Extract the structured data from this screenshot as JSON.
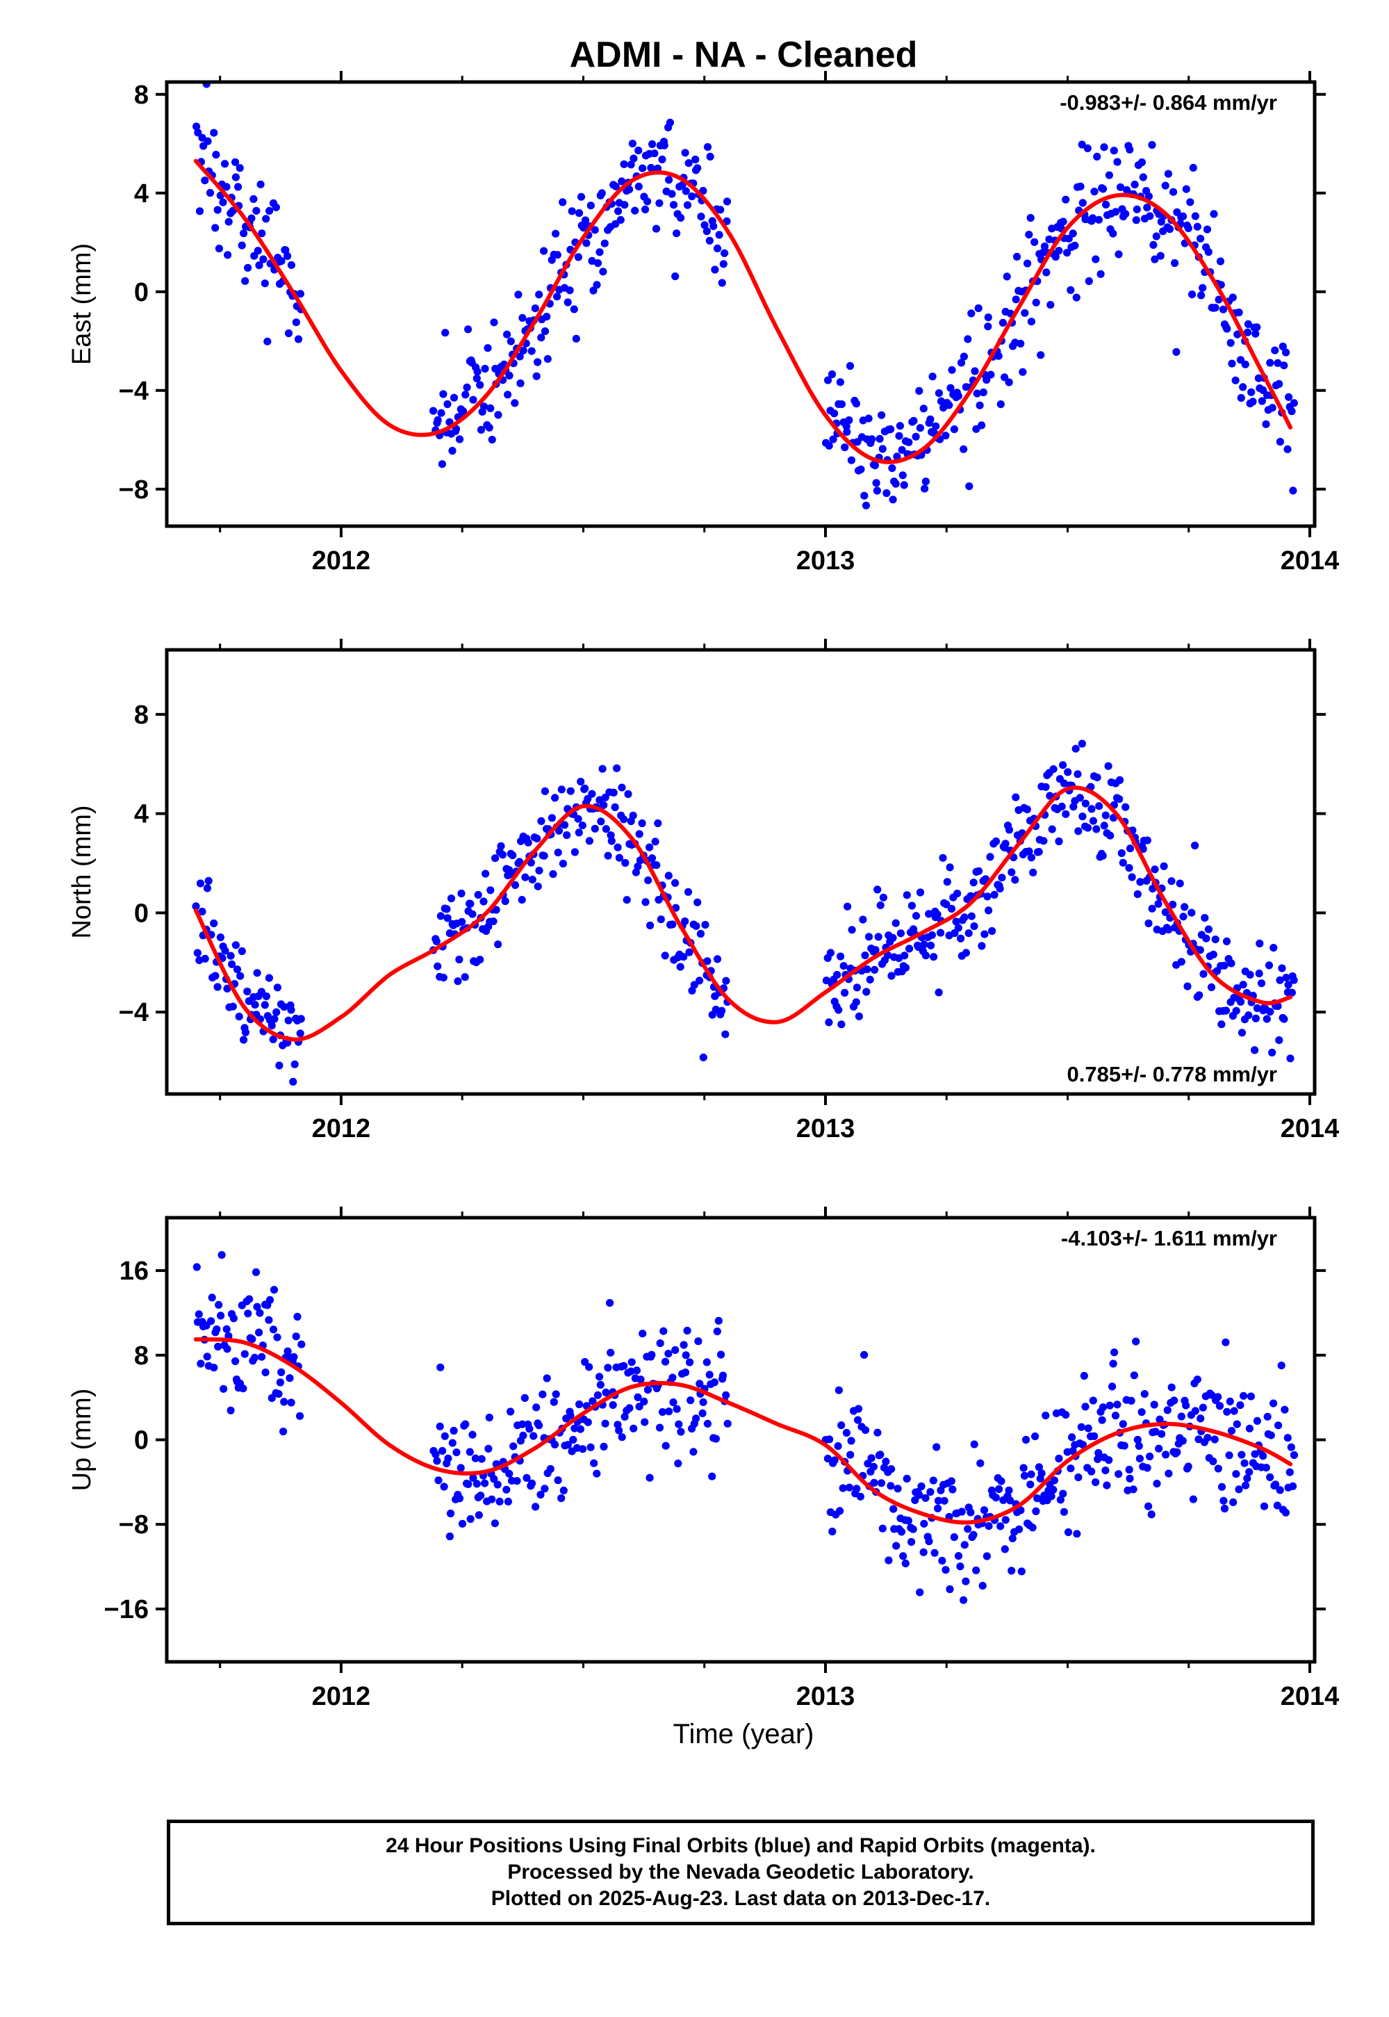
{
  "chart_data": {
    "title": "ADMI  - NA - Cleaned",
    "xlabel": "Time (year)",
    "xlim": [
      2011.64,
      2014.01
    ],
    "x_ticks_major": [
      2012,
      2013,
      2014
    ],
    "x_ticks_minor": [
      2011.75,
      2012.25,
      2012.5,
      2012.75,
      2013.25,
      2013.5,
      2013.75
    ],
    "point_color": "#0000ff",
    "fit_color": "#ff0000",
    "panels": [
      {
        "type": "scatter",
        "name": "east",
        "ylabel": "East (mm)",
        "ylim": [
          -9.5,
          8.5
        ],
        "y_ticks": [
          -8,
          -4,
          0,
          4,
          8
        ],
        "rate_text": "-0.983+/- 0.864 mm/yr",
        "rate_position": "top-right",
        "data_segments": [
          [
            2011.7,
            2011.92
          ],
          [
            2012.19,
            2012.8
          ],
          [
            2013.0,
            2013.97
          ]
        ],
        "fit": {
          "x": [
            2011.7,
            2011.8,
            2011.9,
            2012.0,
            2012.1,
            2012.2,
            2012.3,
            2012.4,
            2012.5,
            2012.6,
            2012.7,
            2012.8,
            2012.9,
            2013.0,
            2013.1,
            2013.2,
            2013.3,
            2013.4,
            2013.5,
            2013.6,
            2013.7,
            2013.8,
            2013.9,
            2013.96
          ],
          "y": [
            5.3,
            3.0,
            0.0,
            -3.2,
            -5.4,
            -5.7,
            -4.2,
            -1.2,
            2.2,
            4.5,
            4.6,
            2.4,
            -1.5,
            -5.0,
            -6.8,
            -6.4,
            -4.0,
            -0.6,
            2.6,
            3.9,
            3.2,
            0.5,
            -3.2,
            -5.5
          ]
        },
        "scatter_sd": 1.3,
        "n_points": 610
      },
      {
        "type": "scatter",
        "name": "north",
        "ylabel": "North (mm)",
        "ylim": [
          -7.3,
          10.6
        ],
        "y_ticks": [
          -4,
          0,
          4,
          8
        ],
        "rate_text": "0.785+/- 0.778 mm/yr",
        "rate_position": "bottom-right",
        "data_segments": [
          [
            2011.7,
            2011.92
          ],
          [
            2012.19,
            2012.8
          ],
          [
            2013.0,
            2013.97
          ]
        ],
        "fit": {
          "x": [
            2011.7,
            2011.8,
            2011.9,
            2012.0,
            2012.1,
            2012.2,
            2012.3,
            2012.4,
            2012.5,
            2012.6,
            2012.7,
            2012.8,
            2012.9,
            2013.0,
            2013.1,
            2013.2,
            2013.3,
            2013.4,
            2013.5,
            2013.6,
            2013.7,
            2013.8,
            2013.9,
            2013.96
          ],
          "y": [
            0.1,
            -3.8,
            -5.1,
            -4.2,
            -2.5,
            -1.4,
            0.0,
            2.5,
            4.3,
            3.0,
            -0.5,
            -3.5,
            -4.4,
            -3.2,
            -1.8,
            -0.8,
            0.4,
            2.8,
            5.0,
            4.0,
            0.5,
            -2.5,
            -3.6,
            -3.4
          ]
        },
        "scatter_sd": 1.1,
        "n_points": 610
      },
      {
        "type": "scatter",
        "name": "up",
        "ylabel": "Up (mm)",
        "ylim": [
          -21,
          21
        ],
        "y_ticks": [
          -16,
          -8,
          0,
          8,
          16
        ],
        "rate_text": "-4.103+/- 1.611 mm/yr",
        "rate_position": "top-right",
        "data_segments": [
          [
            2011.7,
            2011.92
          ],
          [
            2012.19,
            2012.8
          ],
          [
            2013.0,
            2013.97
          ]
        ],
        "fit": {
          "x": [
            2011.7,
            2011.8,
            2011.9,
            2012.0,
            2012.1,
            2012.2,
            2012.3,
            2012.4,
            2012.5,
            2012.6,
            2012.7,
            2012.8,
            2012.9,
            2013.0,
            2013.1,
            2013.2,
            2013.3,
            2013.4,
            2013.5,
            2013.6,
            2013.7,
            2013.8,
            2013.9,
            2013.96
          ],
          "y": [
            9.5,
            9.2,
            7.0,
            3.5,
            -0.5,
            -2.8,
            -3.0,
            -0.8,
            2.5,
            5.0,
            5.2,
            3.5,
            1.5,
            -0.5,
            -4.8,
            -7.0,
            -7.8,
            -6.2,
            -2.0,
            0.6,
            1.5,
            0.8,
            -0.8,
            -2.3
          ]
        },
        "scatter_sd": 3.2,
        "n_points": 610
      }
    ]
  },
  "footer": {
    "line1": "24 Hour Positions Using Final Orbits (blue) and Rapid Orbits (magenta).",
    "line2": "Processed by the Nevada Geodetic Laboratory.",
    "line3": "Plotted on 2025-Aug-23. Last data on 2013-Dec-17."
  }
}
